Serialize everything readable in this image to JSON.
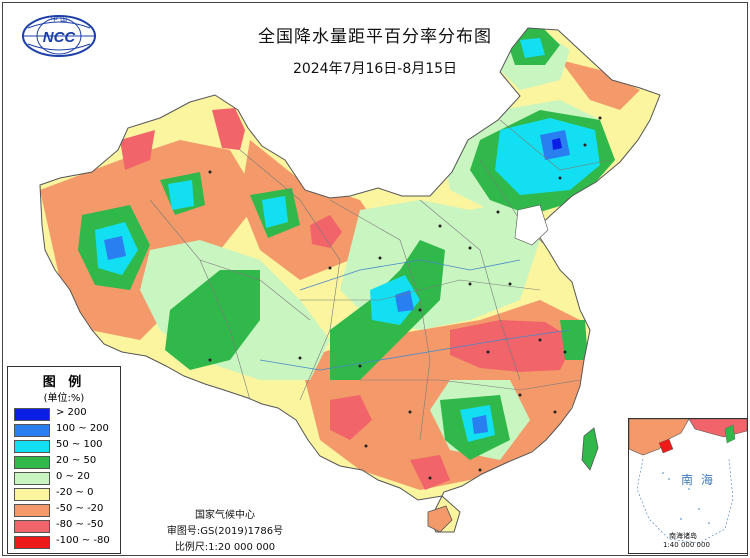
{
  "title": "全国降水量距平百分率分布图",
  "subtitle": "2024年7月16日-8月15日",
  "logo_text": "NCC",
  "logo_arc_text": "中  国",
  "legend": {
    "title": "图 例",
    "unit": "(单位:%)",
    "items": [
      {
        "label": "> 200",
        "color": "#0a1ee6"
      },
      {
        "label": "100 ~ 200",
        "color": "#2a7ff0"
      },
      {
        "label": "50 ~ 100",
        "color": "#12e0f2"
      },
      {
        "label": "20 ~ 50",
        "color": "#31b84a"
      },
      {
        "label": "0 ~ 20",
        "color": "#c9f5c0"
      },
      {
        "label": "-20 ~ 0",
        "color": "#fbf5a0"
      },
      {
        "label": "-50 ~ -20",
        "color": "#f49a6a"
      },
      {
        "label": "-80 ~ -50",
        "color": "#f0646a"
      },
      {
        "label": "-100 ~ -80",
        "color": "#ee1a1a"
      }
    ]
  },
  "credits": {
    "agency": "国家气候中心",
    "approval": "审图号:GS(2019)1786号",
    "scale": "比例尺:1:20 000 000"
  },
  "inset": {
    "sea_label": "南海",
    "caption": "南海诸岛",
    "scale": "1:40 000 000"
  },
  "colors": {
    "blue_dark": "#0a1ee6",
    "blue": "#2a7ff0",
    "cyan": "#12e0f2",
    "green": "#31b84a",
    "light_green": "#c9f5c0",
    "yellow": "#fbf5a0",
    "orange": "#f49a6a",
    "red": "#f0646a",
    "deep_red": "#ee1a1a"
  }
}
